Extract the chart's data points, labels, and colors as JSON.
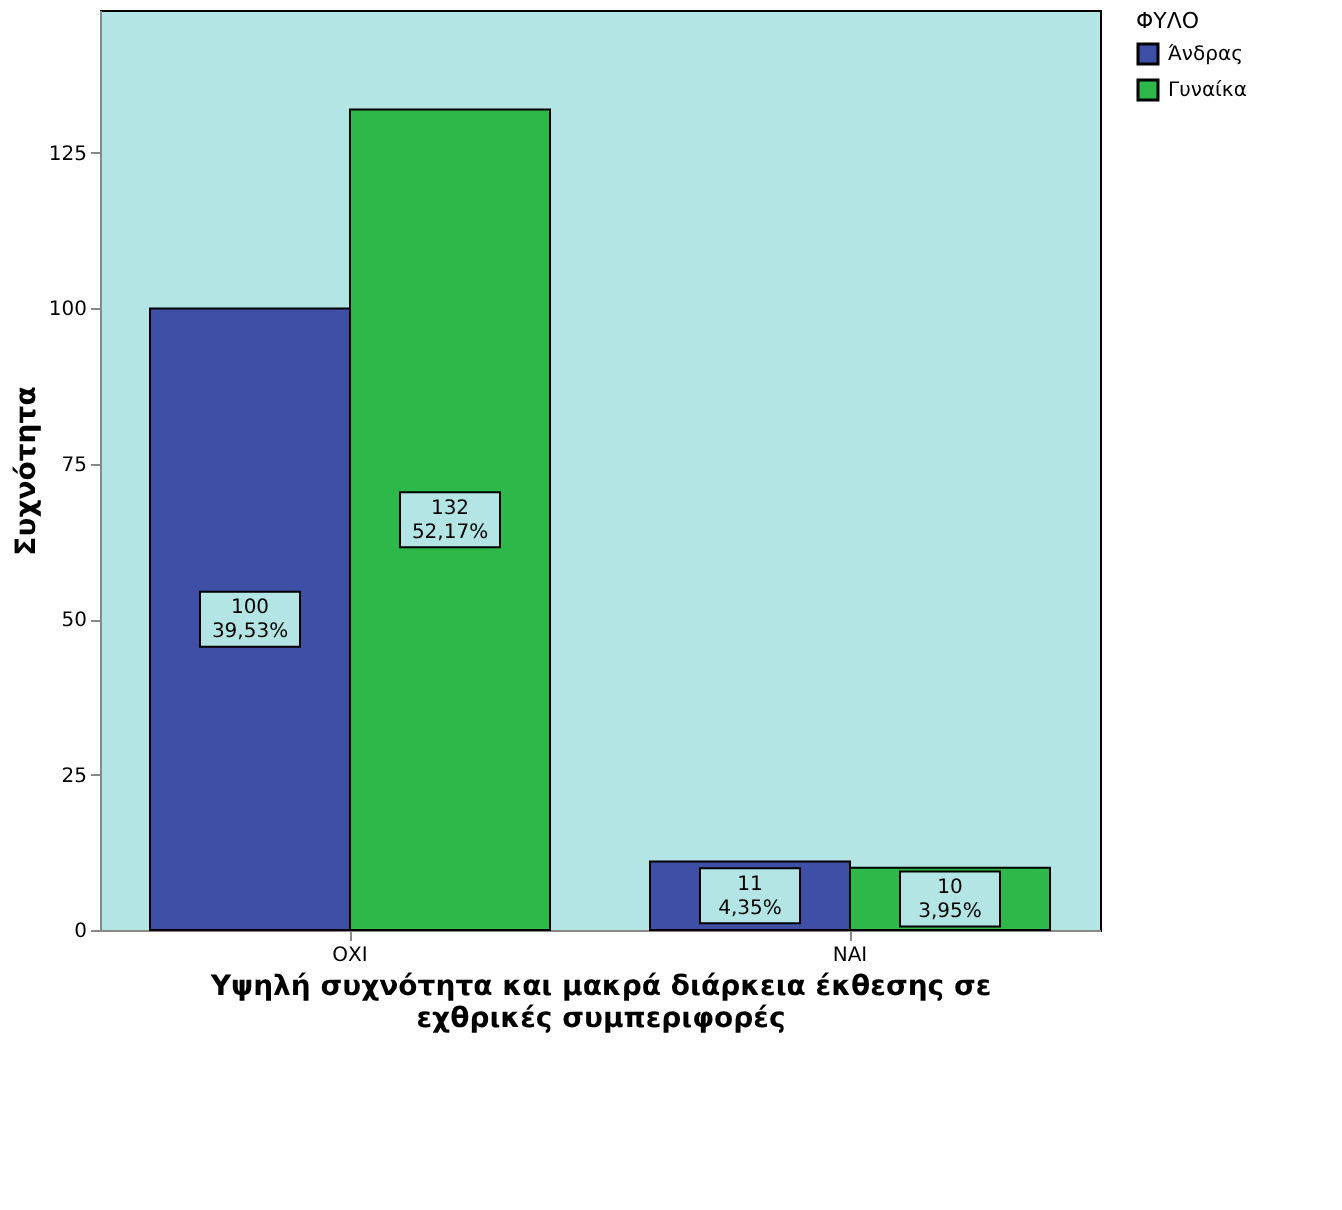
{
  "chart_data": {
    "type": "bar",
    "xlabel": "Υψηλή συχνότητα και μακρά διάρκεια έκθεσης σε\nεχθρικές συμπεριφορές",
    "ylabel": "Συχνότητα",
    "legend_title": "ΦΥΛΟ",
    "categories": [
      "ΟΧΙ",
      "ΝΑΙ"
    ],
    "series": [
      {
        "name": "Άνδρας",
        "color": "#3e4fa5",
        "values": [
          100,
          11
        ],
        "value_labels": [
          "100\n39,53%",
          "11\n4,35%"
        ]
      },
      {
        "name": "Γυναίκα",
        "color": "#2fb84a",
        "values": [
          132,
          10
        ],
        "value_labels": [
          "132\n52,17%",
          "10\n3,95%"
        ]
      }
    ],
    "ylim": [
      0,
      148
    ],
    "yticks": [
      0,
      25,
      50,
      75,
      100,
      125
    ],
    "grid": false,
    "legend": "top right"
  }
}
